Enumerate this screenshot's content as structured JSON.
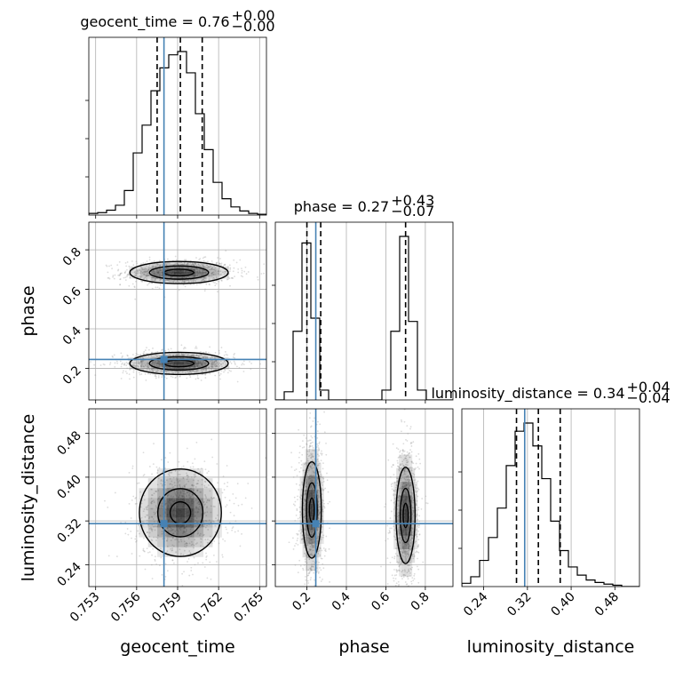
{
  "chart_data": {
    "type": "corner",
    "parameters": [
      {
        "name": "geocent_time",
        "axis_label": "geocent_time",
        "title_main": "geocent_time = 0.76",
        "title_sup": "+0.00",
        "title_sub": "−0.00",
        "range": [
          0.7525,
          0.7655
        ],
        "ticks": [
          0.753,
          0.756,
          0.759,
          0.762,
          0.765
        ],
        "tick_labels": [
          "0.753",
          "0.756",
          "0.759",
          "0.762",
          "0.765"
        ],
        "truth": 0.758,
        "quantiles": [
          0.7575,
          0.7592,
          0.7608
        ],
        "hist_edges": [
          0.7525,
          0.75315,
          0.7538,
          0.75445,
          0.7551,
          0.75575,
          0.7564,
          0.75705,
          0.7577,
          0.75835,
          0.759,
          0.75965,
          0.7603,
          0.76095,
          0.7616,
          0.76225,
          0.7629,
          0.76355,
          0.7642,
          0.76485,
          0.7655
        ],
        "hist_counts": [
          0.01,
          0.015,
          0.03,
          0.06,
          0.15,
          0.38,
          0.55,
          0.76,
          0.9,
          0.98,
          1.0,
          0.87,
          0.62,
          0.4,
          0.2,
          0.1,
          0.05,
          0.025,
          0.01,
          0.005
        ]
      },
      {
        "name": "phase",
        "axis_label": "phase",
        "title_main": "phase = 0.27",
        "title_sup": "+0.43",
        "title_sub": "−0.07",
        "range": [
          0.04,
          0.94
        ],
        "ticks": [
          0.2,
          0.4,
          0.6,
          0.8
        ],
        "tick_labels": [
          "0.2",
          "0.4",
          "0.6",
          "0.8"
        ],
        "truth": 0.245,
        "quantiles": [
          0.2,
          0.27,
          0.7
        ],
        "hist_edges": [
          0.04,
          0.085,
          0.13,
          0.175,
          0.22,
          0.265,
          0.31,
          0.355,
          0.4,
          0.445,
          0.49,
          0.535,
          0.58,
          0.625,
          0.67,
          0.715,
          0.76,
          0.805,
          0.85,
          0.895,
          0.94
        ],
        "hist_counts": [
          0.0,
          0.05,
          0.42,
          0.96,
          0.5,
          0.06,
          0.0,
          0.0,
          0.0,
          0.0,
          0.0,
          0.0,
          0.06,
          0.42,
          1.0,
          0.48,
          0.06,
          0.0,
          0.0,
          0.0
        ]
      },
      {
        "name": "luminosity_distance",
        "axis_label": "luminosity_distance",
        "title_main": "luminosity_distance = 0.34",
        "title_sup": "+0.04",
        "title_sub": "−0.04",
        "range": [
          0.2,
          0.525
        ],
        "ticks": [
          0.24,
          0.32,
          0.4,
          0.48
        ],
        "tick_labels": [
          "0.24",
          "0.32",
          "0.40",
          "0.48"
        ],
        "truth": 0.315,
        "quantiles": [
          0.3,
          0.34,
          0.38
        ],
        "hist_edges": [
          0.2,
          0.21625,
          0.2325,
          0.24875,
          0.265,
          0.28125,
          0.2975,
          0.31375,
          0.33,
          0.34625,
          0.3625,
          0.37875,
          0.395,
          0.41125,
          0.4275,
          0.44375,
          0.46,
          0.47625,
          0.4925,
          0.50875,
          0.525
        ],
        "hist_counts": [
          0.02,
          0.06,
          0.16,
          0.3,
          0.48,
          0.74,
          0.95,
          1.0,
          0.86,
          0.66,
          0.4,
          0.22,
          0.12,
          0.07,
          0.04,
          0.025,
          0.015,
          0.008,
          0.0,
          0.0
        ]
      }
    ],
    "pairs": [
      {
        "x": "geocent_time",
        "y": "phase",
        "modes": [
          {
            "cx": 0.7591,
            "cy": 0.685,
            "sx": 0.0018,
            "sy": 0.028,
            "levels": [
              0.6,
              1.2,
              2.0
            ]
          },
          {
            "cx": 0.7591,
            "cy": 0.225,
            "sx": 0.0018,
            "sy": 0.028,
            "levels": [
              0.6,
              1.2,
              2.0
            ]
          }
        ]
      },
      {
        "x": "geocent_time",
        "y": "luminosity_distance",
        "modes": [
          {
            "cx": 0.7592,
            "cy": 0.335,
            "sx": 0.0015,
            "sy": 0.04,
            "levels": [
              0.5,
              1.1,
              2.0
            ]
          }
        ]
      },
      {
        "x": "phase",
        "y": "luminosity_distance",
        "modes": [
          {
            "cx": 0.225,
            "cy": 0.34,
            "sx": 0.03,
            "sy": 0.055,
            "levels": [
              0.4,
              0.9,
              1.6
            ]
          },
          {
            "cx": 0.7,
            "cy": 0.33,
            "sx": 0.03,
            "sy": 0.055,
            "levels": [
              0.4,
              0.9,
              1.6
            ]
          }
        ]
      }
    ],
    "colors": {
      "truth": "#4682b4",
      "contour": "#000000",
      "density": "#333333",
      "grid": "#b0b0b0"
    }
  }
}
